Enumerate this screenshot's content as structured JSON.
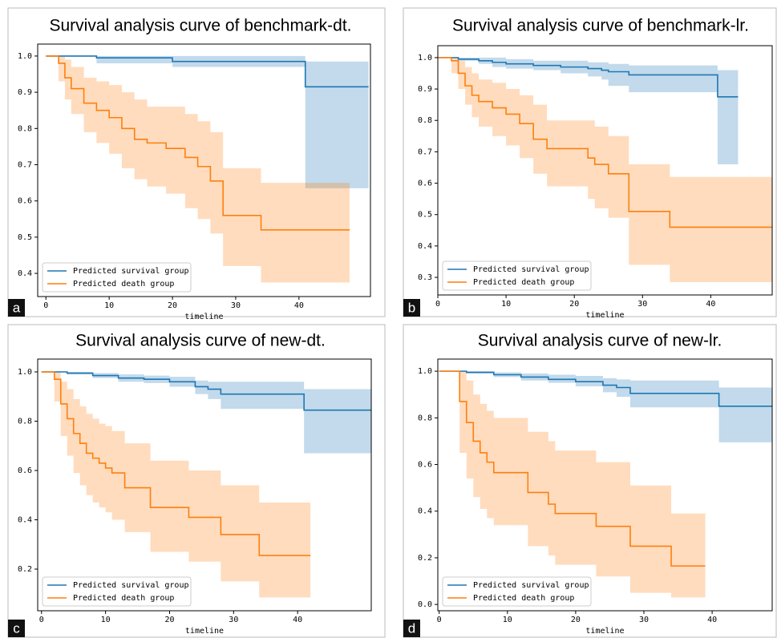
{
  "chart_data": [
    {
      "type": "step",
      "title": "Survival analysis curve of benchmark-dt.",
      "panel_label": "a",
      "xlabel": "timeline",
      "xlim": [
        -1.3,
        51.3
      ],
      "xticks": [
        0,
        10,
        20,
        30,
        40
      ],
      "ylim": [
        0.336,
        1.033
      ],
      "yticks": [
        0.4,
        0.5,
        0.6,
        0.7,
        0.8,
        0.9,
        {
          "value": 1,
          "label": "1.0"
        }
      ],
      "legend": "lower left",
      "series": [
        {
          "name": "Predicted survival group",
          "color": "#1f77b4",
          "x": [
            0,
            8,
            20,
            41,
            51
          ],
          "values": [
            1,
            0.995,
            0.985,
            0.915,
            0.915
          ],
          "lower": [
            1,
            0.98,
            0.97,
            0.635,
            0.635
          ],
          "upper": [
            1,
            1,
            1,
            0.985,
            0.985
          ]
        },
        {
          "name": "Predicted death group",
          "color": "#ff7f0e",
          "x": [
            0,
            2,
            3,
            4,
            6,
            8,
            10,
            12,
            14,
            16,
            19,
            22,
            24,
            26,
            28,
            34,
            48
          ],
          "values": [
            1,
            0.98,
            0.94,
            0.91,
            0.87,
            0.85,
            0.83,
            0.8,
            0.77,
            0.76,
            0.745,
            0.72,
            0.695,
            0.655,
            0.56,
            0.52,
            0.52
          ],
          "lower": [
            1,
            0.93,
            0.88,
            0.84,
            0.79,
            0.76,
            0.73,
            0.69,
            0.66,
            0.64,
            0.62,
            0.58,
            0.55,
            0.51,
            0.42,
            0.375,
            0.375
          ],
          "upper": [
            1,
            1,
            0.99,
            0.97,
            0.94,
            0.93,
            0.92,
            0.9,
            0.88,
            0.86,
            0.86,
            0.84,
            0.82,
            0.79,
            0.69,
            0.65,
            0.65
          ]
        }
      ]
    },
    {
      "type": "step",
      "title": "Survival analysis curve of benchmark-lr.",
      "panel_label": "b",
      "xlabel": "timeline",
      "xlim": [
        0,
        49
      ],
      "xticks": [
        0,
        10,
        20,
        30,
        40
      ],
      "ylim": [
        0.244,
        1.038
      ],
      "yticks": [
        0.3,
        0.4,
        0.5,
        0.6,
        0.7,
        0.8,
        0.9,
        {
          "value": 1,
          "label": "1.0"
        }
      ],
      "legend": "lower left",
      "series": [
        {
          "name": "Predicted survival group",
          "color": "#1f77b4",
          "x": [
            0,
            3,
            6,
            8,
            10,
            14,
            18,
            22,
            24,
            25,
            28,
            41,
            44
          ],
          "values": [
            1,
            0.995,
            0.99,
            0.985,
            0.98,
            0.975,
            0.97,
            0.965,
            0.96,
            0.955,
            0.945,
            0.875,
            0.875
          ],
          "lower": [
            1,
            0.99,
            0.98,
            0.97,
            0.965,
            0.96,
            0.95,
            0.94,
            0.93,
            0.91,
            0.89,
            0.66,
            0.66
          ],
          "upper": [
            1,
            1,
            1,
            1,
            0.995,
            0.99,
            0.99,
            0.985,
            0.985,
            0.98,
            0.975,
            0.96,
            0.96
          ]
        },
        {
          "name": "Predicted death group",
          "color": "#ff7f0e",
          "x": [
            0,
            2,
            3,
            4,
            5,
            6,
            8,
            10,
            12,
            14,
            16,
            22,
            23,
            25,
            28,
            34,
            49
          ],
          "values": [
            1,
            0.99,
            0.95,
            0.91,
            0.88,
            0.86,
            0.84,
            0.82,
            0.79,
            0.74,
            0.71,
            0.68,
            0.66,
            0.63,
            0.51,
            0.46,
            0.46
          ],
          "lower": [
            1,
            0.95,
            0.9,
            0.85,
            0.81,
            0.78,
            0.75,
            0.72,
            0.68,
            0.63,
            0.59,
            0.55,
            0.52,
            0.49,
            0.34,
            0.285,
            0.285
          ],
          "upper": [
            1,
            1,
            0.99,
            0.97,
            0.95,
            0.93,
            0.92,
            0.9,
            0.88,
            0.85,
            0.8,
            0.8,
            0.78,
            0.75,
            0.66,
            0.62,
            0.62
          ]
        }
      ]
    },
    {
      "type": "step",
      "title": "Survival analysis curve of new-dt.",
      "panel_label": "c",
      "xlabel": "timeline",
      "xlim": [
        -0.6,
        51.5
      ],
      "xticks": [
        0,
        10,
        20,
        30,
        40
      ],
      "ylim": [
        0.031,
        1.052
      ],
      "yticks": [
        0.2,
        0.4,
        0.6,
        0.8,
        {
          "value": 1,
          "label": "1.0"
        }
      ],
      "legend": "lower left",
      "series": [
        {
          "name": "Predicted survival group",
          "color": "#1f77b4",
          "x": [
            0,
            4,
            8,
            12,
            16,
            20,
            24,
            26,
            28,
            41,
            51.5
          ],
          "values": [
            1,
            0.995,
            0.985,
            0.975,
            0.97,
            0.96,
            0.94,
            0.93,
            0.91,
            0.845,
            0.845
          ],
          "lower": [
            1,
            0.99,
            0.975,
            0.96,
            0.955,
            0.94,
            0.91,
            0.89,
            0.85,
            0.67,
            0.67
          ],
          "upper": [
            1,
            1,
            0.995,
            0.99,
            0.985,
            0.98,
            0.965,
            0.96,
            0.96,
            0.93,
            0.93
          ]
        },
        {
          "name": "Predicted death group",
          "color": "#ff7f0e",
          "x": [
            0,
            2,
            3,
            4,
            5,
            6,
            7,
            8,
            9,
            10,
            11,
            13,
            17,
            23,
            28,
            34,
            42
          ],
          "values": [
            1,
            0.97,
            0.87,
            0.81,
            0.75,
            0.71,
            0.67,
            0.65,
            0.63,
            0.61,
            0.59,
            0.53,
            0.45,
            0.41,
            0.34,
            0.255,
            0.255
          ],
          "lower": [
            1,
            0.88,
            0.74,
            0.66,
            0.59,
            0.54,
            0.5,
            0.47,
            0.45,
            0.43,
            0.4,
            0.35,
            0.27,
            0.23,
            0.15,
            0.085,
            0.085
          ],
          "upper": [
            1,
            1,
            0.96,
            0.93,
            0.89,
            0.86,
            0.83,
            0.81,
            0.79,
            0.78,
            0.76,
            0.71,
            0.64,
            0.6,
            0.54,
            0.47,
            0.47
          ]
        }
      ]
    },
    {
      "type": "step",
      "title": "Survival analysis curve of new-lr.",
      "panel_label": "d",
      "xlabel": "timeline",
      "xlim": [
        -0.2,
        48.8
      ],
      "xticks": [
        0,
        10,
        20,
        30,
        40
      ],
      "ylim": [
        -0.027,
        1.052
      ],
      "yticks": [
        {
          "value": 0,
          "label": "0.0"
        },
        0.2,
        0.4,
        0.6,
        0.8,
        {
          "value": 1,
          "label": "1.0"
        }
      ],
      "legend": "lower left",
      "series": [
        {
          "name": "Predicted survival group",
          "color": "#1f77b4",
          "x": [
            0,
            4,
            8,
            12,
            16,
            20,
            24,
            26,
            28,
            41,
            48.8
          ],
          "values": [
            1,
            0.995,
            0.985,
            0.975,
            0.965,
            0.955,
            0.94,
            0.93,
            0.905,
            0.85,
            0.85
          ],
          "lower": [
            1,
            0.99,
            0.975,
            0.96,
            0.95,
            0.935,
            0.91,
            0.89,
            0.845,
            0.695,
            0.695
          ],
          "upper": [
            1,
            1,
            0.995,
            0.99,
            0.985,
            0.98,
            0.97,
            0.965,
            0.96,
            0.93,
            0.93
          ]
        },
        {
          "name": "Predicted death group",
          "color": "#ff7f0e",
          "x": [
            0,
            3,
            4,
            5,
            6,
            7,
            8,
            13,
            16,
            17,
            23,
            28,
            34,
            39
          ],
          "values": [
            1,
            0.87,
            0.78,
            0.7,
            0.65,
            0.61,
            0.565,
            0.48,
            0.43,
            0.39,
            0.335,
            0.25,
            0.165,
            0.165
          ],
          "lower": [
            1,
            0.65,
            0.54,
            0.46,
            0.41,
            0.37,
            0.34,
            0.25,
            0.21,
            0.17,
            0.12,
            0.05,
            0.03,
            0.03
          ],
          "upper": [
            1,
            1,
            0.96,
            0.9,
            0.86,
            0.83,
            0.8,
            0.74,
            0.7,
            0.66,
            0.61,
            0.51,
            0.39,
            0.39
          ]
        }
      ]
    }
  ]
}
